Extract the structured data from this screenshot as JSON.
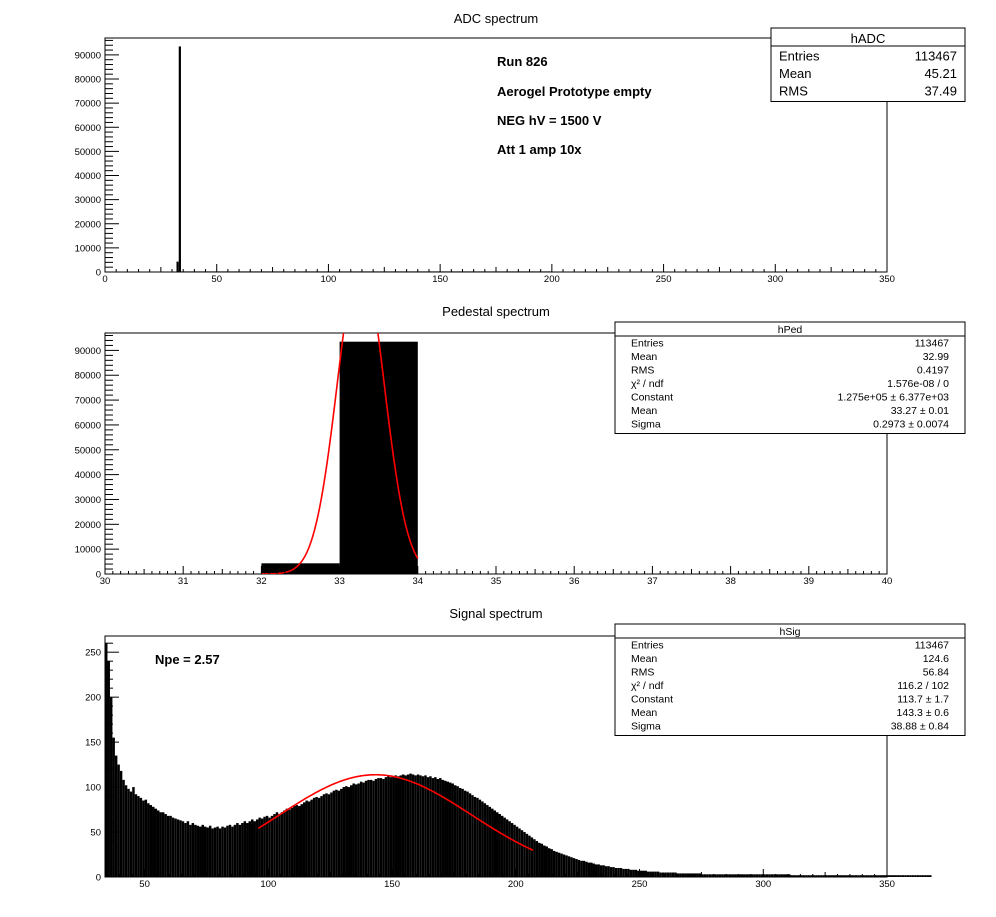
{
  "panels": [
    {
      "id": "adc",
      "title": "ADC spectrum",
      "chart_data": {
        "type": "bar",
        "title": "ADC spectrum",
        "xlim": [
          0,
          350
        ],
        "ylim": [
          0,
          97000
        ],
        "x_ticks": [
          0,
          50,
          100,
          150,
          200,
          250,
          300,
          350
        ],
        "x_tick_labels": [
          "0",
          "50",
          "100",
          "150",
          "200",
          "250",
          "300",
          "350"
        ],
        "y_ticks": [
          0,
          10000,
          20000,
          30000,
          40000,
          50000,
          60000,
          70000,
          80000,
          90000
        ],
        "y_tick_labels": [
          "0",
          "10000",
          "20000",
          "30000",
          "40000",
          "50000",
          "60000",
          "70000",
          "80000",
          "90000"
        ],
        "bin_width": 1,
        "bins": [
          [
            32,
            4300
          ],
          [
            33,
            93500
          ]
        ],
        "baseline_range": [
          34,
          200
        ],
        "baseline_value": 250
      },
      "annotations": [
        "Run  826",
        "Aerogel Prototype empty",
        "NEG hV = 1500 V",
        "Att 1 amp 10x"
      ],
      "stats": {
        "name": "hADC",
        "rows": [
          {
            "label": "Entries",
            "value": "113467"
          },
          {
            "label": "Mean",
            "value": "45.21"
          },
          {
            "label": "RMS",
            "value": "37.49"
          }
        ]
      }
    },
    {
      "id": "ped",
      "title": "Pedestal spectrum",
      "chart_data": {
        "type": "bar",
        "title": "Pedestal spectrum",
        "xlim": [
          30,
          40
        ],
        "ylim": [
          0,
          97000
        ],
        "x_ticks": [
          30,
          31,
          32,
          33,
          34,
          35,
          36,
          37,
          38,
          39,
          40
        ],
        "x_tick_labels": [
          "30",
          "31",
          "32",
          "33",
          "34",
          "35",
          "36",
          "37",
          "38",
          "39",
          "40"
        ],
        "y_ticks": [
          0,
          10000,
          20000,
          30000,
          40000,
          50000,
          60000,
          70000,
          80000,
          90000
        ],
        "y_tick_labels": [
          "0",
          "10000",
          "20000",
          "30000",
          "40000",
          "50000",
          "60000",
          "70000",
          "80000",
          "90000"
        ],
        "bin_width": 1,
        "bins": [
          [
            32,
            4300
          ],
          [
            33,
            93500
          ]
        ],
        "fit": {
          "type": "gaus",
          "constant": 127500,
          "mean": 33.27,
          "sigma": 0.2973,
          "range": [
            32,
            34
          ],
          "color": "#ff0000"
        }
      },
      "stats": {
        "name": "hPed",
        "rows": [
          {
            "label": "Entries",
            "value": "113467"
          },
          {
            "label": "Mean",
            "value": "32.99"
          },
          {
            "label": "RMS",
            "value": "0.4197"
          },
          {
            "label": "χ² / ndf",
            "value": "1.576e-08 / 0"
          },
          {
            "label": "Constant",
            "value": "1.275e+05 ± 6.377e+03"
          },
          {
            "label": "Mean",
            "value": "33.27 ± 0.01"
          },
          {
            "label": "Sigma",
            "value": "0.2973 ± 0.0074"
          }
        ]
      }
    },
    {
      "id": "sig",
      "title": "Signal spectrum",
      "chart_data": {
        "type": "bar",
        "title": "Signal spectrum",
        "xlim": [
          34,
          350
        ],
        "ylim": [
          0,
          268
        ],
        "x_ticks": [
          50,
          100,
          150,
          200,
          250,
          300,
          350
        ],
        "x_tick_labels": [
          "50",
          "100",
          "150",
          "200",
          "250",
          "300",
          "350"
        ],
        "y_ticks": [
          0,
          50,
          100,
          150,
          200,
          250
        ],
        "y_tick_labels": [
          "0",
          "50",
          "100",
          "150",
          "200",
          "250"
        ],
        "bin_width": 1,
        "values": [
          260,
          240,
          200,
          155,
          135,
          125,
          118,
          108,
          102,
          98,
          95,
          100,
          92,
          90,
          88,
          85,
          86,
          82,
          80,
          78,
          76,
          74,
          72,
          72,
          70,
          68,
          68,
          66,
          65,
          64,
          63,
          62,
          60,
          62,
          58,
          60,
          58,
          57,
          56,
          58,
          56,
          55,
          57,
          54,
          55,
          56,
          54,
          56,
          55,
          57,
          58,
          56,
          58,
          60,
          58,
          60,
          62,
          60,
          62,
          64,
          62,
          64,
          66,
          65,
          67,
          68,
          66,
          68,
          70,
          72,
          70,
          72,
          74,
          76,
          75,
          77,
          79,
          80,
          79,
          81,
          83,
          85,
          84,
          86,
          88,
          89,
          88,
          90,
          92,
          93,
          92,
          94,
          96,
          97,
          96,
          98,
          100,
          101,
          100,
          102,
          104,
          103,
          104,
          106,
          105,
          107,
          108,
          108,
          107,
          109,
          110,
          110,
          109,
          111,
          112,
          111,
          112,
          113,
          112,
          113,
          114,
          113,
          114,
          115,
          114,
          113,
          114,
          113,
          112,
          113,
          111,
          112,
          110,
          111,
          109,
          110,
          108,
          107,
          106,
          105,
          104,
          102,
          101,
          99,
          98,
          96,
          95,
          93,
          91,
          89,
          88,
          86,
          84,
          82,
          80,
          78,
          76,
          74,
          72,
          70,
          68,
          66,
          64,
          62,
          60,
          58,
          56,
          54,
          52,
          50,
          48,
          46,
          44,
          42,
          40,
          38,
          37,
          35,
          34,
          32,
          31,
          29,
          28,
          27,
          26,
          25,
          24,
          23,
          22,
          21,
          20,
          19,
          18,
          18,
          17,
          16,
          16,
          15,
          14,
          14,
          13,
          13,
          12,
          12,
          11,
          11,
          10,
          10,
          10,
          9,
          9,
          9,
          8,
          8,
          8,
          7,
          7,
          7,
          7,
          6,
          6,
          6,
          6,
          6,
          5,
          5,
          5,
          5,
          5,
          5,
          5,
          4,
          4,
          4,
          4,
          4,
          4,
          4,
          4,
          4,
          4,
          3,
          3,
          3,
          3,
          3,
          3,
          3,
          3,
          3,
          3,
          3,
          3,
          3,
          3,
          3,
          3,
          3,
          3,
          3,
          3,
          3,
          3,
          3,
          3,
          3,
          3,
          3,
          3,
          3,
          3,
          3,
          3,
          3,
          3,
          3,
          3,
          2,
          2,
          2,
          2,
          2,
          2,
          2,
          2,
          2,
          2,
          2,
          2,
          2,
          2,
          2,
          2,
          2,
          2,
          2,
          2,
          2,
          2,
          2,
          2,
          2,
          2,
          2,
          2,
          2,
          2,
          2,
          2,
          2,
          2,
          2,
          2,
          2,
          2,
          2,
          2,
          2,
          2,
          2,
          2,
          2,
          2,
          2,
          2,
          2,
          2,
          2,
          2,
          2,
          2,
          2,
          2,
          2
        ],
        "fit": {
          "type": "gaus",
          "constant": 113.7,
          "mean": 143.3,
          "sigma": 38.88,
          "range": [
            96,
            207
          ],
          "color": "#ff0000"
        }
      },
      "annotations": [
        "Npe = 2.57"
      ],
      "stats": {
        "name": "hSig",
        "rows": [
          {
            "label": "Entries",
            "value": "113467"
          },
          {
            "label": "Mean",
            "value": "124.6"
          },
          {
            "label": "RMS",
            "value": "56.84"
          },
          {
            "label": "χ² / ndf",
            "value": "116.2 / 102"
          },
          {
            "label": "Constant",
            "value": "113.7 ± 1.7"
          },
          {
            "label": "Mean",
            "value": "143.3 ± 0.6"
          },
          {
            "label": "Sigma",
            "value": "38.88 ± 0.84"
          }
        ]
      }
    }
  ]
}
